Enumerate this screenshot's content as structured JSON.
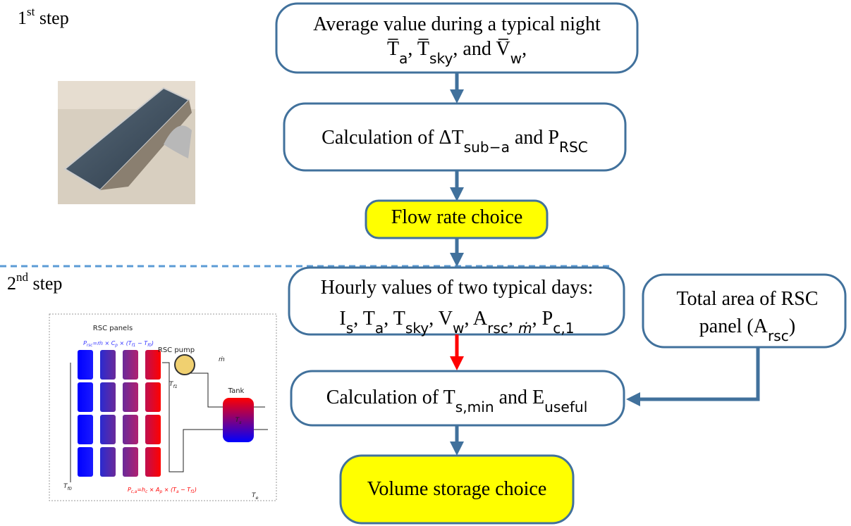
{
  "steps": [
    {
      "number": "1",
      "ordinal": "st",
      "word": "step"
    },
    {
      "number": "2",
      "ordinal": "nd",
      "word": "step"
    }
  ],
  "nodes": [
    {
      "lines": [
        [
          "Average value during a typical night"
        ],
        [
          "T̅",
          "a",
          ", T̅",
          "sky",
          ", and V̅",
          "w",
          ","
        ]
      ]
    },
    {
      "lines": [
        [
          "Calculation of ΔT",
          "sub−a",
          " and P",
          "RSC"
        ]
      ]
    },
    {
      "lines": [
        [
          "Flow rate choice"
        ]
      ]
    },
    {
      "lines": [
        [
          "Hourly values of two typical days:"
        ],
        [
          "I",
          "s",
          ", T",
          "a",
          ", T",
          "sky",
          ", V",
          "w",
          ", A",
          "rsc",
          ", ",
          "ṁ",
          ", P",
          "c,1"
        ]
      ]
    },
    {
      "lines": [
        [
          "Total area of RSC"
        ],
        [
          "panel (A",
          "rsc",
          ")"
        ]
      ]
    },
    {
      "lines": [
        [
          "Calculation of T",
          "s,min",
          " and E",
          "useful"
        ]
      ]
    },
    {
      "lines": [
        [
          "Volume storage choice"
        ]
      ]
    }
  ],
  "schematic": {
    "labels": [
      [
        "RSC panels"
      ],
      [
        "RSC pump"
      ],
      [
        "Tank"
      ],
      [
        "ṁ"
      ],
      [
        "T",
        "f1"
      ],
      [
        "T",
        "s"
      ],
      [
        "T",
        "f0"
      ],
      [
        "T",
        "e"
      ],
      [
        "P",
        "rsc",
        "=ṁ × C",
        "p",
        " × (T",
        "f1",
        " − T",
        "f0",
        ")"
      ],
      [
        "P",
        "c,a",
        "=h",
        "c",
        " × A",
        "p",
        " × (T",
        "a",
        " − T",
        "f1",
        ")"
      ]
    ]
  }
}
